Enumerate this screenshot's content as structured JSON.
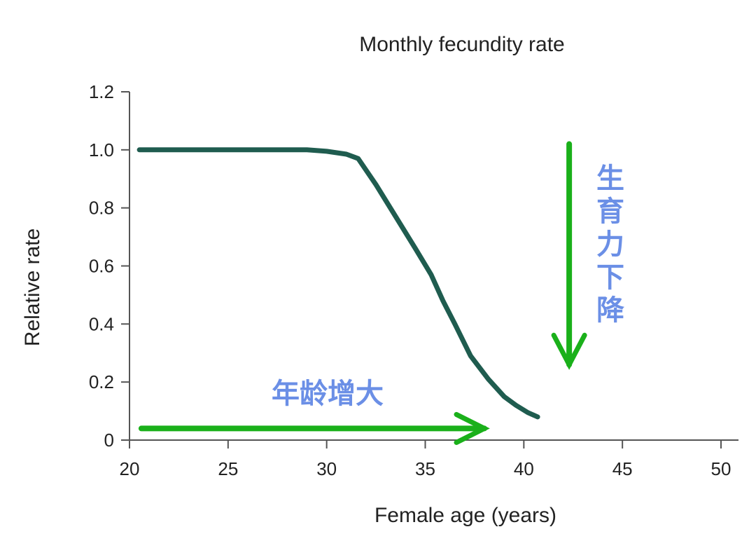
{
  "chart_data": {
    "type": "line",
    "title": "Monthly fecundity rate",
    "xlabel": "Female age (years)",
    "ylabel": "Relative rate",
    "xlim": [
      20,
      50
    ],
    "ylim": [
      0,
      1.2
    ],
    "x_ticks": [
      20,
      25,
      30,
      35,
      40,
      45,
      50
    ],
    "x_tick_labels": [
      "20",
      "25",
      "30",
      "35",
      "40",
      "45",
      "50"
    ],
    "y_ticks": [
      0,
      0.2,
      0.4,
      0.6,
      0.8,
      1.0,
      1.2
    ],
    "y_tick_labels": [
      "0",
      "0.2",
      "0.4",
      "0.6",
      "0.8",
      "1.0",
      "1.2"
    ],
    "grid": false,
    "legend": "none",
    "series": [
      {
        "color": "#1f5c4f",
        "x": [
          20.5,
          22,
          24,
          26,
          28,
          29,
          30,
          31,
          31.6,
          32.5,
          33.5,
          34.5,
          35.3,
          35.9,
          36.5,
          37.3,
          38.2,
          39,
          39.6,
          40.2,
          40.7
        ],
        "y": [
          1.0,
          1.0,
          1.0,
          1.0,
          1.0,
          1.0,
          0.995,
          0.985,
          0.97,
          0.88,
          0.77,
          0.66,
          0.57,
          0.48,
          0.4,
          0.29,
          0.21,
          0.15,
          0.12,
          0.095,
          0.08
        ]
      }
    ],
    "annotations": [
      {
        "text": "年龄增大",
        "color": "#6b8fe6",
        "arrow": {
          "direction": "right",
          "from": [
            20.6,
            0.04
          ],
          "to": [
            38.0,
            0.04
          ],
          "color": "#1ab01a"
        }
      },
      {
        "text": "生育力下降",
        "color": "#6b8fe6",
        "arrow": {
          "direction": "down",
          "from": [
            42.3,
            1.02
          ],
          "to": [
            42.3,
            0.26
          ],
          "color": "#1ab01a"
        }
      }
    ]
  }
}
